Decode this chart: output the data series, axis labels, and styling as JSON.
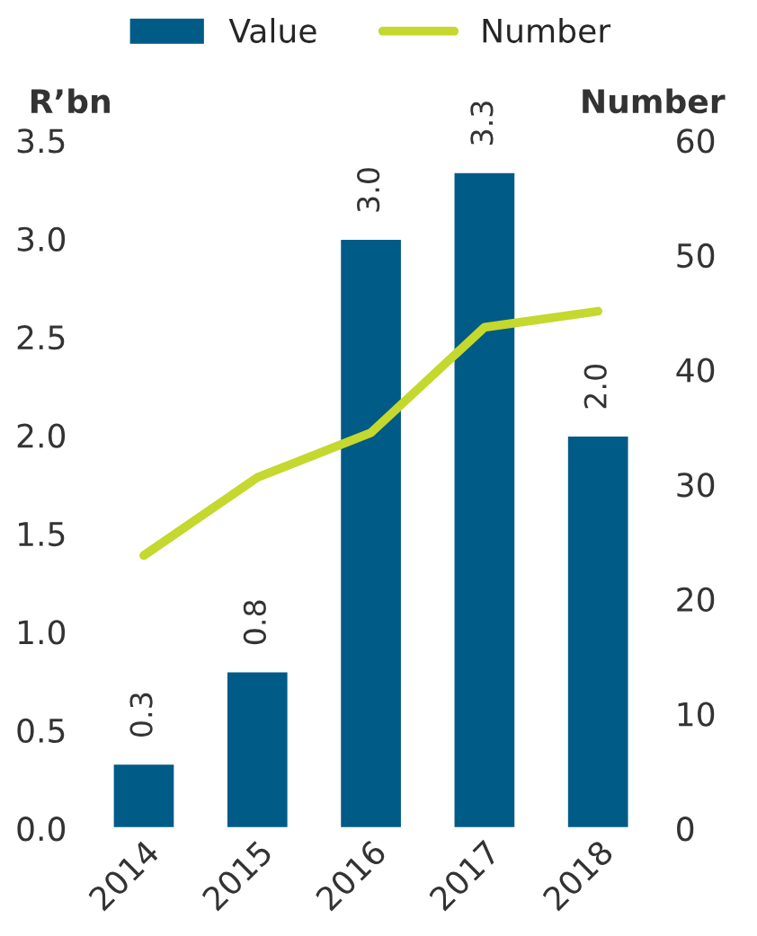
{
  "chart_data": {
    "type": "bar",
    "categories": [
      "2014",
      "2015",
      "2016",
      "2017",
      "2018"
    ],
    "ylabel": "R’bn",
    "y2label": "Number",
    "series": [
      {
        "name": "Value",
        "color": "#005b87",
        "values": [
          0.33,
          0.8,
          3.0,
          3.34,
          2.0
        ],
        "value_labels": [
          "0.3",
          "0.8",
          "3.0",
          "3.3",
          "2.0"
        ]
      },
      {
        "name": "Number",
        "type": "line",
        "axis": "y2",
        "color": "#c4d82e",
        "values": [
          23.8,
          30.6,
          34.5,
          43.7,
          45.1
        ]
      }
    ],
    "ylim": [
      0,
      3.5
    ],
    "yticks": [
      {
        "value": 0,
        "label": "0.0"
      },
      0.5,
      {
        "value": 1,
        "label": "1.0"
      },
      1.5,
      {
        "value": 2,
        "label": "2.0"
      },
      2.5,
      {
        "value": 3,
        "label": "3.0"
      },
      3.5
    ],
    "y2lim": [
      0,
      60
    ],
    "y2ticks": [
      0,
      10,
      20,
      30,
      40,
      50,
      60
    ],
    "legend": "top",
    "grid": false,
    "marker": "none",
    "line_style": "solid"
  }
}
